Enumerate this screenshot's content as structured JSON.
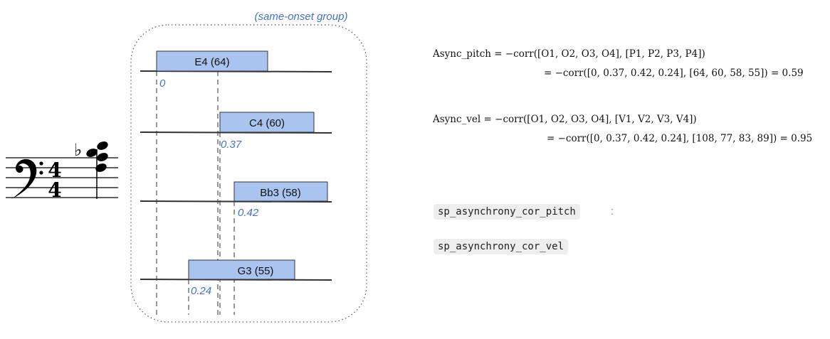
{
  "group_label": "(same-onset group)",
  "notes": [
    {
      "name": "E4 (64)",
      "onset": "0"
    },
    {
      "name": "C4 (60)",
      "onset": "0.37"
    },
    {
      "name": "Bb3 (58)",
      "onset": "0.42"
    },
    {
      "name": "G3 (55)",
      "onset": "0.24"
    }
  ],
  "score": {
    "clef": "bass-clef",
    "time_signature": {
      "top": "4",
      "bottom": "4"
    },
    "accidental": "♭"
  },
  "formulas": {
    "pitch_line1": "Async_pitch = −corr([O1, O2, O3, O4], [P1, P2, P3, P4])",
    "pitch_line2": "= −corr([0, 0.37, 0.42, 0.24], [64, 60, 58, 55]) = 0.59",
    "vel_line1": "Async_vel = −corr([O1, O2, O3, O4], [V1, V2, V3, V4])",
    "vel_line2": "= −corr([0, 0.37, 0.42, 0.24], [108, 77, 83, 89]) = 0.95"
  },
  "features": {
    "pitch": "sp_asynchrony_cor_pitch",
    "pitch_suffix": ":",
    "vel": "sp_asynchrony_cor_vel"
  },
  "colors": {
    "note_fill": "#aac4f0",
    "accent": "#4472c4"
  }
}
